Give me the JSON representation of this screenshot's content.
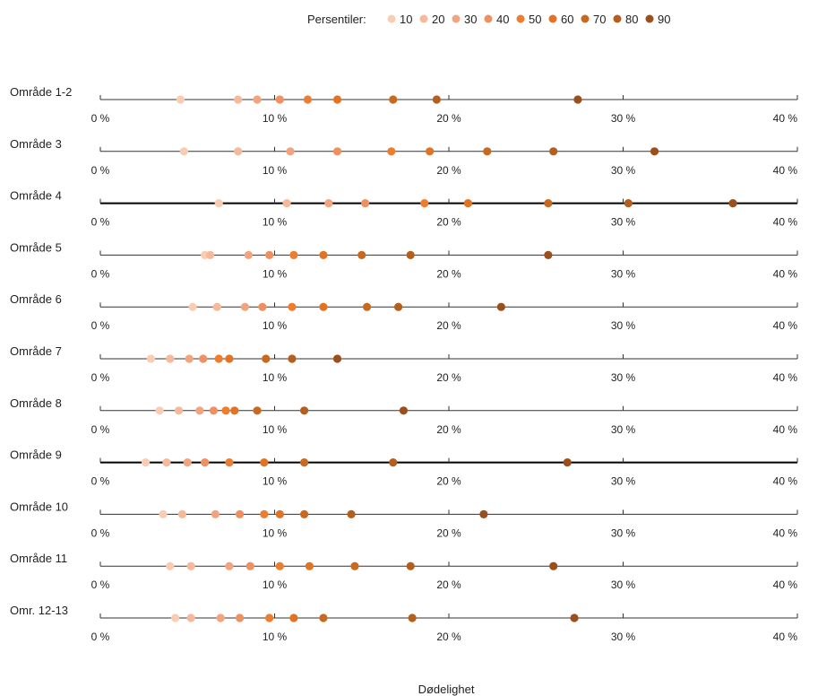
{
  "chart_data": {
    "type": "scatter",
    "legend_title": "Persentiler:",
    "legend_position": "top",
    "xlabel": "Dødelighet",
    "xlim": [
      0,
      40
    ],
    "xticks": [
      0,
      10,
      20,
      30,
      40
    ],
    "xtick_labels": [
      "0 %",
      "10 %",
      "20 %",
      "30 %",
      "40 %"
    ],
    "series_names": [
      "10",
      "20",
      "30",
      "40",
      "50",
      "60",
      "70",
      "80",
      "90"
    ],
    "series_colors": [
      "#f9cdb4",
      "#f6b99a",
      "#f2a47e",
      "#ee9060",
      "#ed7d2f",
      "#e07424",
      "#c9691f",
      "#b45f1e",
      "#9a4f1c"
    ],
    "rows": [
      {
        "label": "Område 1-2",
        "bold_axis": false,
        "values": [
          4.6,
          7.9,
          9.0,
          10.3,
          11.9,
          13.6,
          16.8,
          19.3,
          27.4
        ]
      },
      {
        "label": "Område 3",
        "bold_axis": false,
        "values": [
          4.8,
          7.9,
          10.9,
          13.6,
          16.7,
          18.9,
          22.2,
          26.0,
          31.8
        ]
      },
      {
        "label": "Område 4",
        "bold_axis": true,
        "values": [
          6.8,
          10.7,
          13.1,
          15.2,
          18.6,
          21.1,
          25.7,
          30.3,
          36.3
        ]
      },
      {
        "label": "Område 5",
        "bold_axis": false,
        "values": [
          6.0,
          6.3,
          8.5,
          9.7,
          11.1,
          12.8,
          15.0,
          17.8,
          25.7
        ]
      },
      {
        "label": "Område 6",
        "bold_axis": false,
        "values": [
          5.3,
          6.7,
          8.3,
          9.3,
          11.0,
          12.8,
          15.3,
          17.1,
          23.0
        ]
      },
      {
        "label": "Område 7",
        "bold_axis": false,
        "values": [
          2.9,
          4.0,
          5.1,
          5.9,
          6.8,
          7.4,
          9.5,
          11.0,
          13.6
        ]
      },
      {
        "label": "Område 8",
        "bold_axis": false,
        "values": [
          3.4,
          4.5,
          5.7,
          6.5,
          7.2,
          7.7,
          9.0,
          11.7,
          17.4
        ]
      },
      {
        "label": "Område 9",
        "bold_axis": true,
        "values": [
          2.6,
          3.8,
          5.0,
          6.0,
          7.4,
          9.4,
          11.7,
          16.8,
          26.8
        ]
      },
      {
        "label": "Område 10",
        "bold_axis": false,
        "values": [
          3.6,
          4.7,
          6.6,
          8.0,
          9.4,
          10.3,
          11.7,
          14.4,
          22.0
        ]
      },
      {
        "label": "Område 11",
        "bold_axis": false,
        "values": [
          4.0,
          5.2,
          7.4,
          8.6,
          10.3,
          12.0,
          14.6,
          17.8,
          26.0
        ]
      },
      {
        "label": "Omr. 12-13",
        "bold_axis": false,
        "values": [
          4.3,
          5.2,
          6.9,
          8.0,
          9.7,
          11.1,
          12.8,
          17.9,
          27.2
        ]
      }
    ]
  }
}
